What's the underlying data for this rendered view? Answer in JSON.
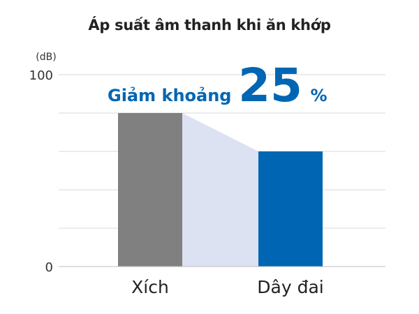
{
  "chart_data": {
    "type": "bar",
    "title": "Áp suất âm thanh khi ăn khớp",
    "ylabel": "(dB)",
    "ylim": [
      0,
      100
    ],
    "yticks": [
      {
        "value": 0,
        "label": "0"
      },
      {
        "value": 100,
        "label": "100"
      }
    ],
    "grid_values": [
      20,
      40,
      60,
      80,
      100
    ],
    "grid": true,
    "categories": [
      "Xích",
      "Dây đai"
    ],
    "values": [
      80,
      60
    ],
    "bar_colors": [
      "#808080",
      "#0066b3"
    ],
    "connector_color": "#dce2f2",
    "annotation": {
      "prefix": "Giảm khoảng",
      "number": "25",
      "suffix": "%",
      "color": "#0066b3"
    }
  }
}
